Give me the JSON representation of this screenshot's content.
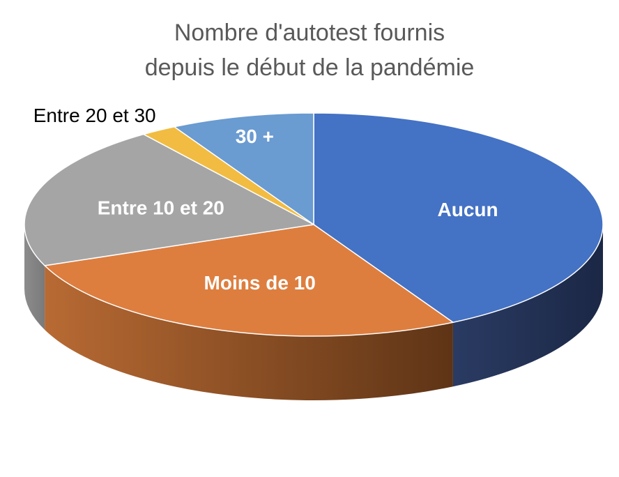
{
  "chart_data": {
    "type": "pie",
    "title_lines": [
      "Nombre d'autotest fournis",
      "depuis le début de la pandémie"
    ],
    "slices": [
      {
        "label": "Aucun",
        "value": 42,
        "color": "#4472C4",
        "side_color": "#1F2D4F",
        "label_position": "inside"
      },
      {
        "label": "Moins de 10",
        "value": 27,
        "color": "#DD7E3F",
        "side_color": "#8A4A1E",
        "label_position": "inside"
      },
      {
        "label": "Entre 10 et 20",
        "value": 21,
        "color": "#A5A5A5",
        "side_color": "#6B6B6B",
        "label_position": "inside"
      },
      {
        "label": "Entre 20 et 30",
        "value": 2,
        "color": "#F1BC41",
        "side_color": "#9C7A28",
        "label_position": "outside"
      },
      {
        "label": "30 +",
        "value": 8,
        "color": "#6A9BD1",
        "side_color": "#3B5F8A",
        "label_position": "inside"
      }
    ],
    "style": "3d",
    "legend": "none"
  }
}
